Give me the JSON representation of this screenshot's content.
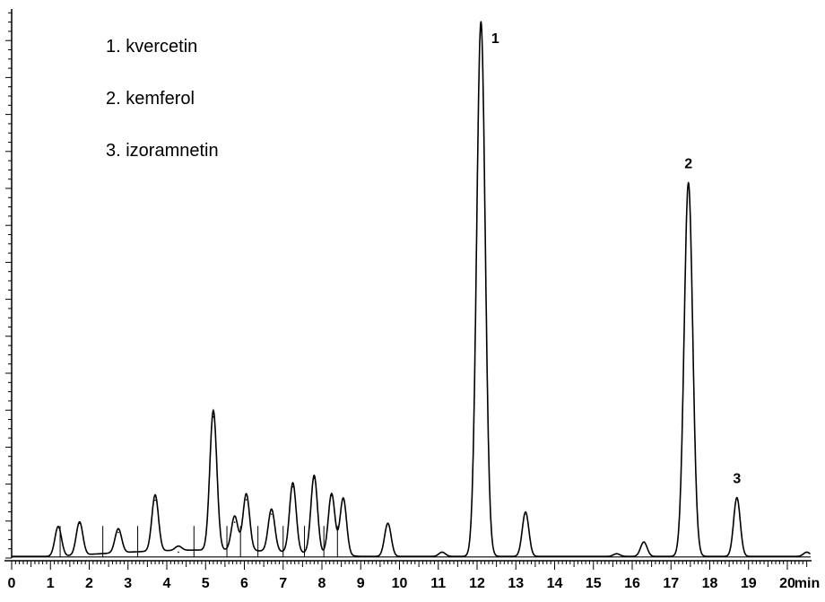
{
  "legend": [
    "1. kvercetin",
    "2. kemferol",
    "3. izoramnetin"
  ],
  "chart_data": {
    "type": "line",
    "title": "",
    "xlabel": "min",
    "ylabel": "",
    "xlim": [
      0,
      20.6
    ],
    "ylim": [
      0,
      100
    ],
    "grid": false,
    "x_ticks": [
      0,
      1,
      2,
      3,
      4,
      5,
      6,
      7,
      8,
      9,
      10,
      11,
      12,
      13,
      14,
      15,
      16,
      17,
      18,
      19,
      20
    ],
    "x_tick_labels": [
      "0",
      "1",
      "2",
      "3",
      "4",
      "5",
      "6",
      "7",
      "8",
      "9",
      "10",
      "11",
      "12",
      "13",
      "14",
      "15",
      "16",
      "17",
      "18",
      "19",
      "20"
    ],
    "series": [
      {
        "peaks": [
          {
            "x": 1.2,
            "y": 5.6
          },
          {
            "x": 1.75,
            "y": 6.2
          },
          {
            "x": 2.75,
            "y": 4.5
          },
          {
            "x": 3.7,
            "y": 10.5
          },
          {
            "x": 4.3,
            "y": 0.8
          },
          {
            "x": 5.2,
            "y": 26.1
          },
          {
            "x": 5.75,
            "y": 6.4
          },
          {
            "x": 6.05,
            "y": 10.6
          },
          {
            "x": 6.7,
            "y": 7.9
          },
          {
            "x": 7.25,
            "y": 13.0
          },
          {
            "x": 7.8,
            "y": 14.6
          },
          {
            "x": 8.25,
            "y": 11.4
          },
          {
            "x": 8.55,
            "y": 10.7
          },
          {
            "x": 9.7,
            "y": 6.2
          },
          {
            "x": 11.1,
            "y": 0.8
          },
          {
            "x": 12.1,
            "y": 100
          },
          {
            "x": 13.25,
            "y": 8.3
          },
          {
            "x": 15.6,
            "y": 0.5
          },
          {
            "x": 16.3,
            "y": 2.7
          },
          {
            "x": 17.45,
            "y": 69.9
          },
          {
            "x": 18.7,
            "y": 11.0
          },
          {
            "x": 20.5,
            "y": 0.8
          }
        ]
      }
    ],
    "annotations": [
      {
        "text": "1",
        "x": 12.1
      },
      {
        "text": "2",
        "x": 17.45
      },
      {
        "text": "3",
        "x": 18.7
      }
    ]
  }
}
